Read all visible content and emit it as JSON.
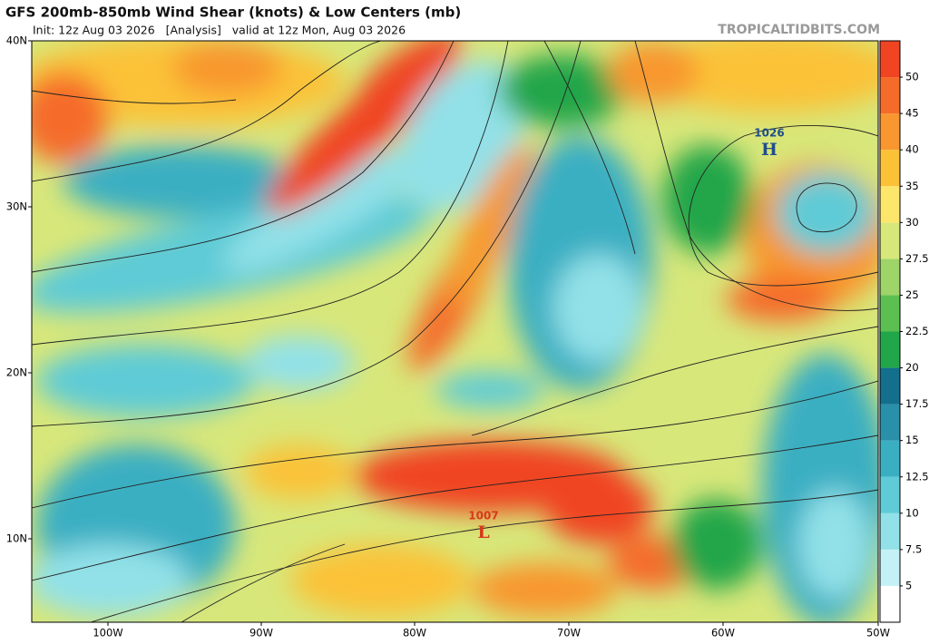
{
  "header": {
    "title": "GFS 200mb-850mb Wind Shear (knots) & Low Centers (mb)",
    "subtitle": "Init: 12z Aug 03 2026   [Analysis]   valid at 12z Mon, Aug 03 2026",
    "credit": "TROPICALTIDBITS.COM"
  },
  "map": {
    "lat_labels": [
      "40N",
      "30N",
      "20N",
      "10N"
    ],
    "lon_labels": [
      "100W",
      "90W",
      "80W",
      "70W",
      "60W",
      "50W"
    ]
  },
  "colorbar": {
    "levels": [
      {
        "label": "",
        "color": "#ffffff"
      },
      {
        "label": "5",
        "color": "#c4f1f5"
      },
      {
        "label": "7.5",
        "color": "#92e1e8"
      },
      {
        "label": "10",
        "color": "#5ecbd6"
      },
      {
        "label": "12.5",
        "color": "#3aafc2"
      },
      {
        "label": "15",
        "color": "#2a8fa8"
      },
      {
        "label": "17.5",
        "color": "#136f8c"
      },
      {
        "label": "20",
        "color": "#22a64a"
      },
      {
        "label": "22.5",
        "color": "#5cbf52"
      },
      {
        "label": "25",
        "color": "#9ed468"
      },
      {
        "label": "27.5",
        "color": "#d8e77a"
      },
      {
        "label": "30",
        "color": "#fde66c"
      },
      {
        "label": "35",
        "color": "#fbc238"
      },
      {
        "label": "40",
        "color": "#f8972f"
      },
      {
        "label": "45",
        "color": "#f56c2a"
      },
      {
        "label": "50",
        "color": "#f04423"
      }
    ]
  },
  "centers": [
    {
      "pressure": "1026",
      "symbol": "H"
    },
    {
      "pressure": "1007",
      "symbol": "L"
    }
  ]
}
